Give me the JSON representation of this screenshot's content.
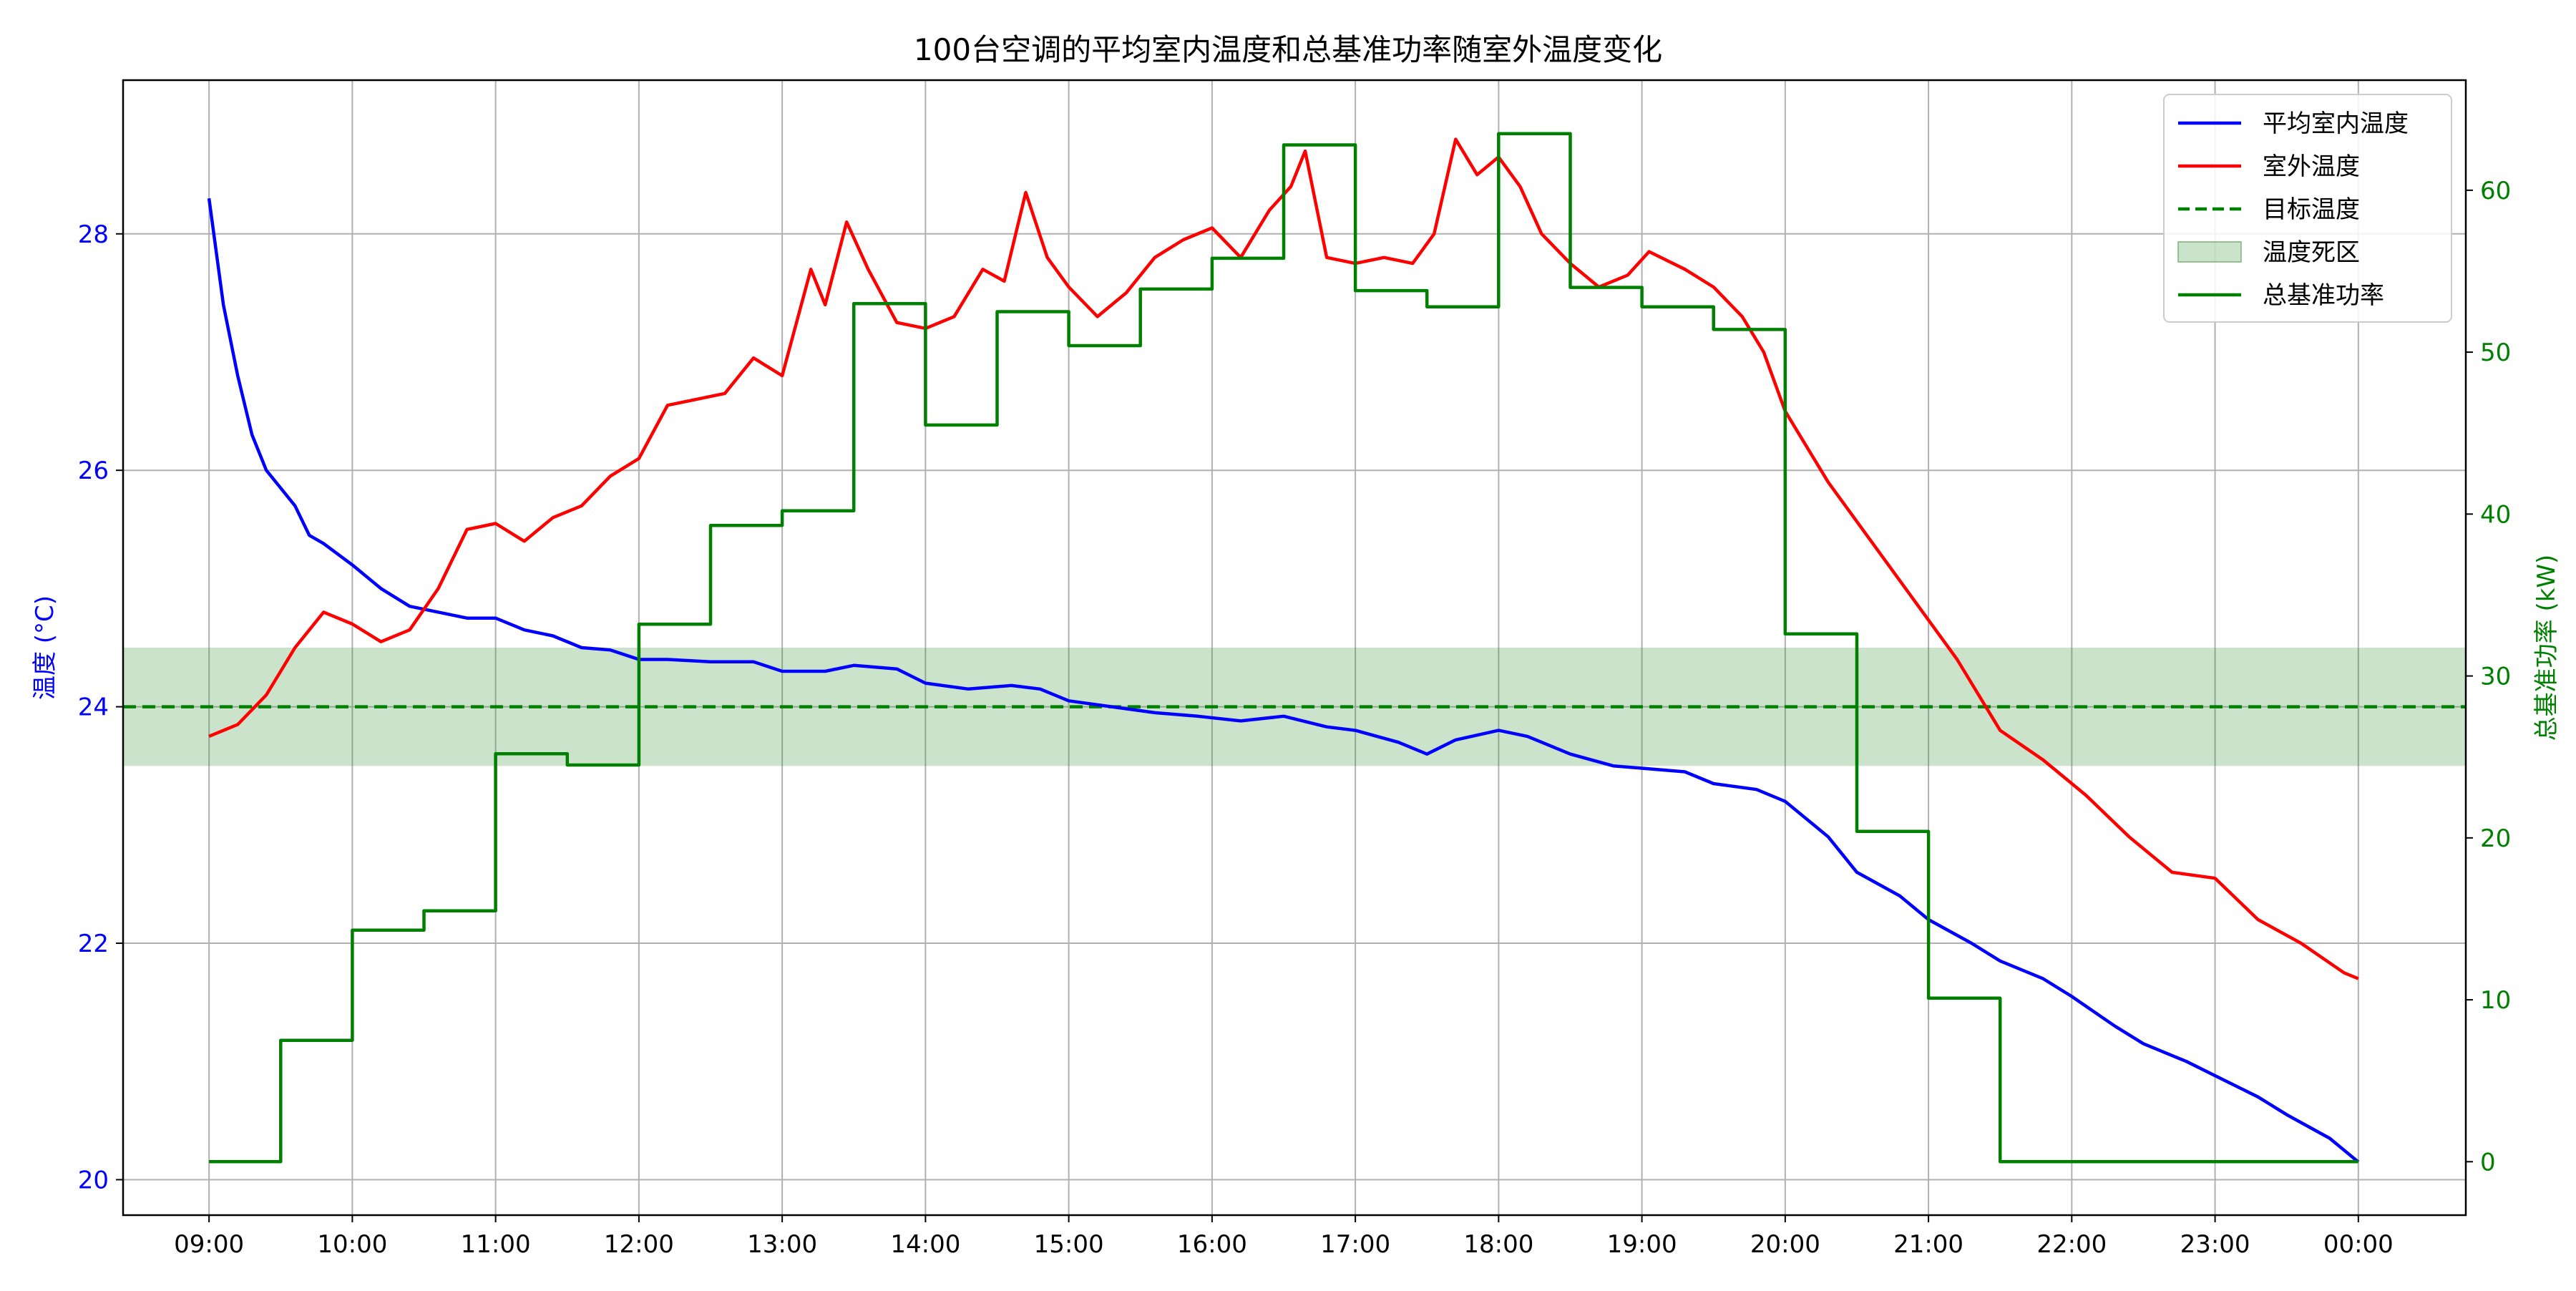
{
  "chart_data": {
    "type": "line",
    "title": "100台空调的平均室内温度和总基准功率随室外温度变化",
    "xlabel": "",
    "ylabel": "温度 (°C)",
    "ylabel_right": "总基准功率 (kW)",
    "x_ticks": [
      "09:00",
      "10:00",
      "11:00",
      "12:00",
      "13:00",
      "14:00",
      "15:00",
      "16:00",
      "17:00",
      "18:00",
      "19:00",
      "20:00",
      "21:00",
      "22:00",
      "23:00",
      "00:00"
    ],
    "x_range_hours": [
      8.4,
      24.75
    ],
    "y_left_range": [
      19.7,
      29.3
    ],
    "y_left_ticks": [
      20,
      22,
      24,
      26,
      28
    ],
    "y_right_range": [
      -3.3,
      66.8
    ],
    "y_right_ticks": [
      0,
      10,
      20,
      30,
      40,
      50,
      60
    ],
    "grid": true,
    "legend_position": "upper right",
    "colors": {
      "indoor": "#0000ff",
      "outdoor": "#ff0000",
      "target": "#008000",
      "deadband": "#2e8b2e",
      "power": "#008000",
      "left_axis": "#0000ff",
      "right_axis": "#008000",
      "grid": "#b0b0b0"
    },
    "legend": [
      {
        "key": "indoor",
        "label": "平均室内温度",
        "style": "line"
      },
      {
        "key": "outdoor",
        "label": "室外温度",
        "style": "line"
      },
      {
        "key": "target",
        "label": "目标温度",
        "style": "dashed"
      },
      {
        "key": "deadband",
        "label": "温度死区",
        "style": "band"
      },
      {
        "key": "power",
        "label": "总基准功率",
        "style": "line"
      }
    ],
    "target_temperature": 24,
    "deadband": [
      23.5,
      24.5
    ],
    "series": [
      {
        "name": "平均室内温度",
        "key": "indoor",
        "axis": "left",
        "x_hours": [
          9,
          9.1,
          9.2,
          9.3,
          9.4,
          9.5,
          9.6,
          9.7,
          9.8,
          10,
          10.2,
          10.4,
          10.6,
          10.8,
          11,
          11.2,
          11.4,
          11.6,
          11.8,
          12,
          12.2,
          12.5,
          12.8,
          13,
          13.3,
          13.5,
          13.8,
          14,
          14.3,
          14.6,
          14.8,
          15,
          15.3,
          15.6,
          15.9,
          16.2,
          16.5,
          16.8,
          17,
          17.3,
          17.5,
          17.7,
          18,
          18.2,
          18.5,
          18.8,
          19,
          19.3,
          19.5,
          19.8,
          20,
          20.3,
          20.5,
          20.8,
          21,
          21.3,
          21.5,
          21.8,
          22,
          22.3,
          22.5,
          22.8,
          23,
          23.3,
          23.5,
          23.8,
          24
        ],
        "values": [
          28.3,
          27.4,
          26.8,
          26.3,
          26.0,
          25.85,
          25.7,
          25.45,
          25.38,
          25.2,
          25.0,
          24.85,
          24.8,
          24.75,
          24.75,
          24.65,
          24.6,
          24.5,
          24.48,
          24.4,
          24.4,
          24.38,
          24.38,
          24.3,
          24.3,
          24.35,
          24.32,
          24.2,
          24.15,
          24.18,
          24.15,
          24.05,
          24.0,
          23.95,
          23.92,
          23.88,
          23.92,
          23.83,
          23.8,
          23.7,
          23.6,
          23.72,
          23.8,
          23.75,
          23.6,
          23.5,
          23.48,
          23.45,
          23.35,
          23.3,
          23.2,
          22.9,
          22.6,
          22.4,
          22.2,
          22.0,
          21.85,
          21.7,
          21.55,
          21.3,
          21.15,
          21.0,
          20.88,
          20.7,
          20.55,
          20.35,
          20.15
        ]
      },
      {
        "name": "室外温度",
        "key": "outdoor",
        "axis": "left",
        "x_hours": [
          9,
          9.2,
          9.4,
          9.6,
          9.8,
          10,
          10.2,
          10.4,
          10.6,
          10.8,
          11,
          11.2,
          11.4,
          11.6,
          11.8,
          12,
          12.2,
          12.4,
          12.6,
          12.8,
          13,
          13.2,
          13.3,
          13.45,
          13.6,
          13.8,
          14,
          14.2,
          14.4,
          14.55,
          14.7,
          14.85,
          15,
          15.2,
          15.4,
          15.6,
          15.8,
          16,
          16.2,
          16.4,
          16.55,
          16.65,
          16.8,
          17,
          17.2,
          17.4,
          17.55,
          17.7,
          17.85,
          18,
          18.15,
          18.3,
          18.5,
          18.7,
          18.9,
          19.05,
          19.3,
          19.5,
          19.7,
          19.85,
          20,
          20.3,
          20.6,
          20.9,
          21.2,
          21.5,
          21.8,
          22.1,
          22.4,
          22.7,
          23,
          23.3,
          23.6,
          23.9,
          24
        ],
        "values": [
          23.75,
          23.85,
          24.1,
          24.5,
          24.8,
          24.7,
          24.55,
          24.65,
          25.0,
          25.5,
          25.55,
          25.4,
          25.6,
          25.7,
          25.95,
          26.1,
          26.55,
          26.6,
          26.65,
          26.95,
          26.8,
          27.7,
          27.4,
          28.1,
          27.7,
          27.25,
          27.2,
          27.3,
          27.7,
          27.6,
          28.35,
          27.8,
          27.55,
          27.3,
          27.5,
          27.8,
          27.95,
          28.05,
          27.8,
          28.2,
          28.4,
          28.7,
          27.8,
          27.75,
          27.8,
          27.75,
          28.0,
          28.8,
          28.5,
          28.65,
          28.4,
          28.0,
          27.75,
          27.55,
          27.65,
          27.85,
          27.7,
          27.55,
          27.3,
          27.0,
          26.5,
          25.9,
          25.4,
          24.9,
          24.4,
          23.8,
          23.55,
          23.25,
          22.9,
          22.6,
          22.55,
          22.2,
          22.0,
          21.75,
          21.7
        ]
      },
      {
        "name": "总基准功率",
        "key": "power",
        "axis": "right",
        "steps": [
          [
            9,
            0
          ],
          [
            9.5,
            7.5
          ],
          [
            10,
            14.3
          ],
          [
            10.5,
            15.5
          ],
          [
            11,
            25.2
          ],
          [
            11.5,
            24.5
          ],
          [
            12,
            33.2
          ],
          [
            12.5,
            39.3
          ],
          [
            13,
            40.2
          ],
          [
            13.5,
            53.0
          ],
          [
            14,
            45.5
          ],
          [
            14.5,
            52.5
          ],
          [
            15,
            50.4
          ],
          [
            15.5,
            53.9
          ],
          [
            16,
            55.8
          ],
          [
            16.5,
            62.8
          ],
          [
            17,
            53.8
          ],
          [
            17.5,
            52.8
          ],
          [
            18,
            63.5
          ],
          [
            18.5,
            54.0
          ],
          [
            19,
            52.8
          ],
          [
            19.5,
            51.4
          ],
          [
            20,
            32.6
          ],
          [
            20.5,
            20.4
          ],
          [
            21,
            10.1
          ],
          [
            21.5,
            0
          ],
          [
            24,
            0
          ]
        ]
      }
    ]
  }
}
